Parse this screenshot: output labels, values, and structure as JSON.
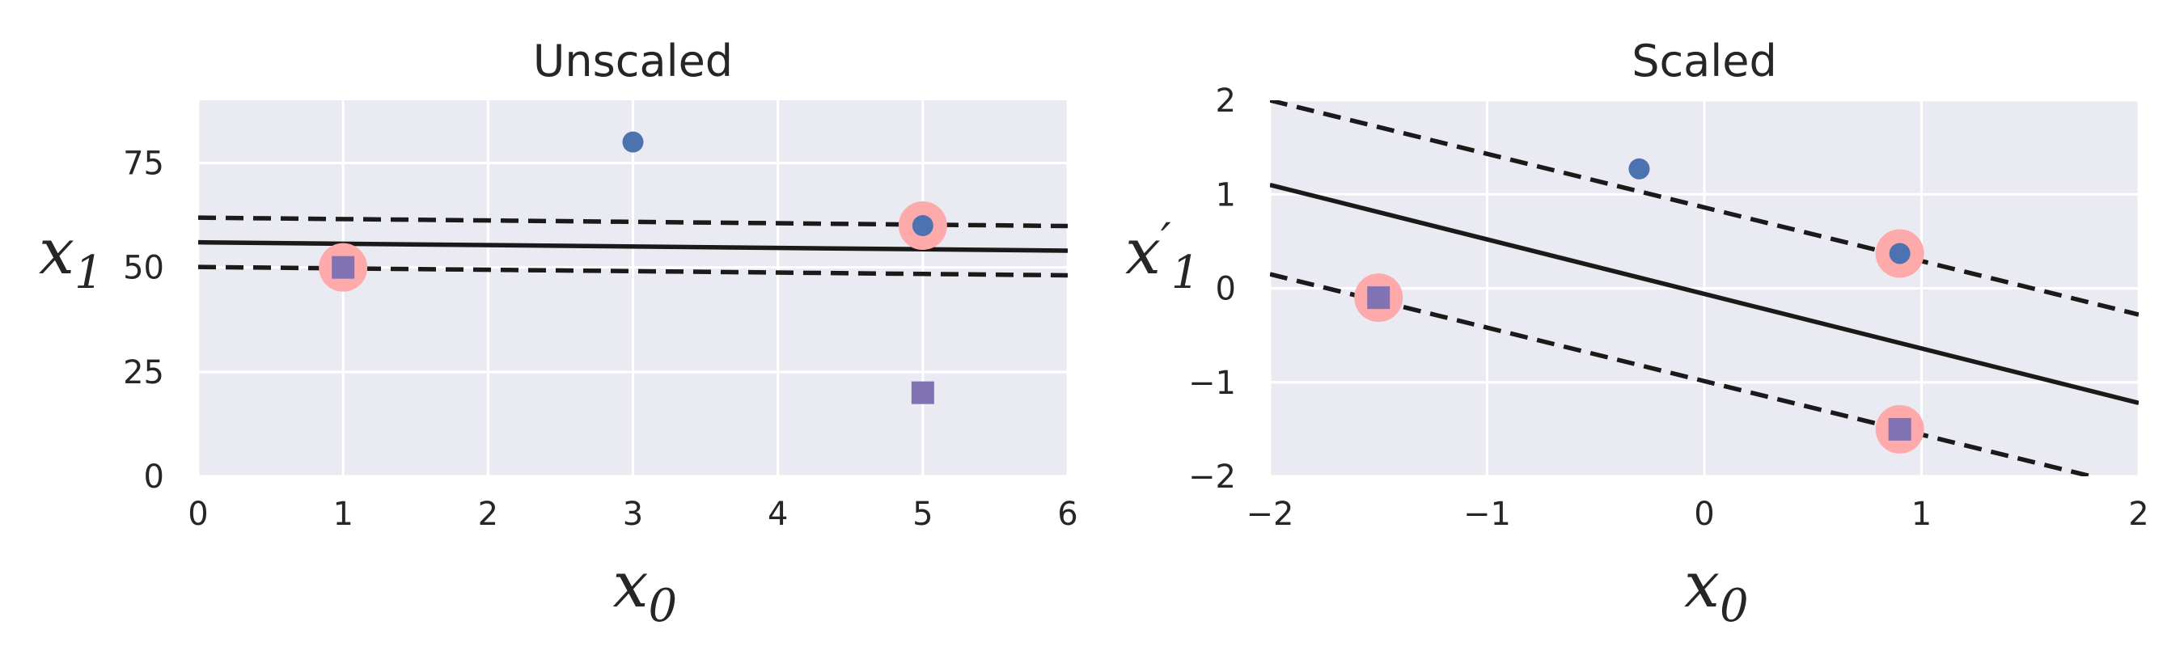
{
  "chart_data": [
    {
      "type": "scatter",
      "title": "Unscaled",
      "xlabel": {
        "base": "x",
        "sub": "0",
        "prime": ""
      },
      "ylabel": {
        "base": "x",
        "sub": "1",
        "prime": ""
      },
      "xlim": [
        0,
        6
      ],
      "ylim": [
        0,
        90
      ],
      "xticks": [
        {
          "value": 0,
          "label": "0"
        },
        {
          "value": 1,
          "label": "1"
        },
        {
          "value": 2,
          "label": "2"
        },
        {
          "value": 3,
          "label": "3"
        },
        {
          "value": 4,
          "label": "4"
        },
        {
          "value": 5,
          "label": "5"
        },
        {
          "value": 6,
          "label": "6"
        }
      ],
      "yticks": [
        {
          "value": 0,
          "label": "0"
        },
        {
          "value": 25,
          "label": "25"
        },
        {
          "value": 50,
          "label": "50"
        },
        {
          "value": 75,
          "label": "75"
        }
      ],
      "grid": true,
      "background_color": "#eaeaf2",
      "series": [
        {
          "marker": "circle",
          "color": "#4c72b0",
          "points": [
            [
              3,
              80
            ],
            [
              5,
              60
            ]
          ]
        },
        {
          "marker": "square",
          "color": "#8172b3",
          "points": [
            [
              1,
              50
            ],
            [
              5,
              20
            ]
          ]
        }
      ],
      "support_vectors": {
        "color": "#ffaaaa",
        "points": [
          [
            1,
            50
          ],
          [
            5,
            60
          ]
        ]
      },
      "decision_boundary": {
        "color": "#1a1a1a",
        "style": "solid",
        "points": [
          [
            0,
            56
          ],
          [
            6,
            54
          ]
        ]
      },
      "margins": [
        {
          "color": "#1a1a1a",
          "style": "dashed",
          "points": [
            [
              0,
              61.9
            ],
            [
              6,
              59.9
            ]
          ]
        },
        {
          "color": "#1a1a1a",
          "style": "dashed",
          "points": [
            [
              0,
              50.1
            ],
            [
              6,
              48.1
            ]
          ]
        }
      ]
    },
    {
      "type": "scatter",
      "title": "Scaled",
      "xlabel": {
        "base": "x",
        "sub": "0",
        "prime": ""
      },
      "ylabel": {
        "base": "x",
        "sub": "1",
        "prime": "′"
      },
      "xlim": [
        -2,
        2
      ],
      "ylim": [
        -2,
        2
      ],
      "xticks": [
        {
          "value": -2,
          "label": "−2"
        },
        {
          "value": -1,
          "label": "−1"
        },
        {
          "value": 0,
          "label": "0"
        },
        {
          "value": 1,
          "label": "1"
        },
        {
          "value": 2,
          "label": "2"
        }
      ],
      "yticks": [
        {
          "value": -2,
          "label": "−2"
        },
        {
          "value": -1,
          "label": "−1"
        },
        {
          "value": 0,
          "label": "0"
        },
        {
          "value": 1,
          "label": "1"
        },
        {
          "value": 2,
          "label": "2"
        }
      ],
      "grid": true,
      "background_color": "#eaeaf2",
      "series": [
        {
          "marker": "circle",
          "color": "#4c72b0",
          "points": [
            [
              -0.3,
              1.27
            ],
            [
              0.9,
              0.37
            ]
          ]
        },
        {
          "marker": "square",
          "color": "#8172b3",
          "points": [
            [
              -1.5,
              -0.1
            ],
            [
              0.9,
              -1.5
            ]
          ]
        }
      ],
      "support_vectors": {
        "color": "#ffaaaa",
        "points": [
          [
            -1.5,
            -0.1
          ],
          [
            0.9,
            0.37
          ],
          [
            0.9,
            -1.5
          ]
        ]
      },
      "decision_boundary": {
        "color": "#1a1a1a",
        "style": "solid",
        "points": [
          [
            -2,
            1.1
          ],
          [
            2,
            -1.22
          ]
        ]
      },
      "margins": [
        {
          "color": "#1a1a1a",
          "style": "dashed",
          "points": [
            [
              -2,
              2.0
            ],
            [
              2,
              -0.28
            ]
          ]
        },
        {
          "color": "#1a1a1a",
          "style": "dashed",
          "points": [
            [
              -2,
              0.15
            ],
            [
              1.78,
              -2.0
            ]
          ]
        }
      ]
    }
  ]
}
